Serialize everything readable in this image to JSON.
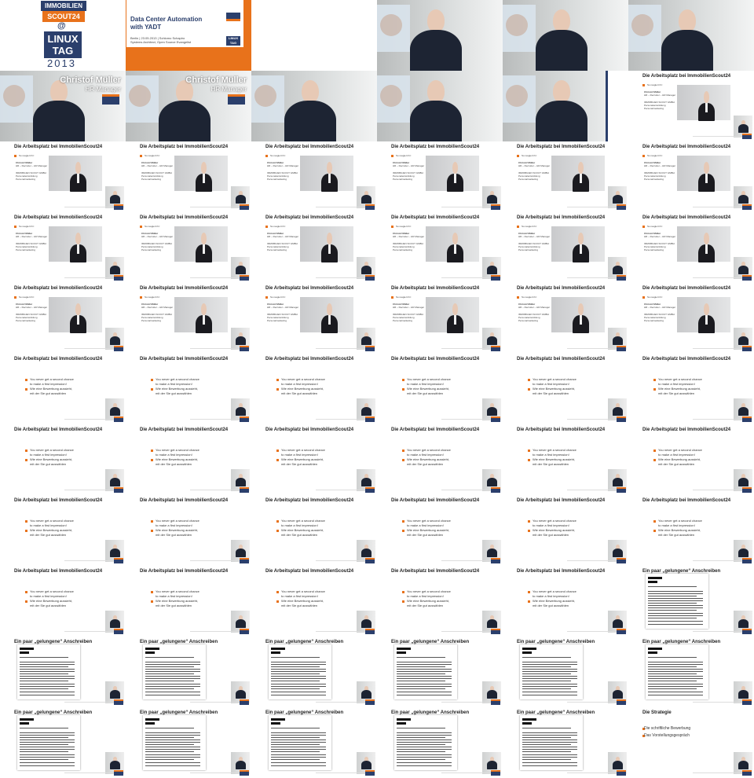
{
  "logo": {
    "brand_top": "IMMOBILIEN",
    "brand_bottom": "SCOUT24",
    "at": "@",
    "event_line1": "LINUX",
    "event_line2": "TAG",
    "year": "2013"
  },
  "title_slide": {
    "title_line1": "Data Center Automation",
    "title_line2": "with YADT",
    "meta_line1": "Berlin | 23.05.2013 | Schlomo Schapiro",
    "meta_line2": "Systems Architect, Open Source Evangelist",
    "logo_text1": "LINUX",
    "logo_text2": "TAG"
  },
  "speaker": {
    "name": "Christof Müller",
    "role": "HR Manager"
  },
  "slides": {
    "arbeitsplatz_title": "Die Arbeitsplatz bei ImmobilienScout24",
    "profile_intro": "So reagiert ihr:",
    "profile_name": "Christof Müller",
    "profile_role": "HR – Recruiter – HR Manager",
    "profile_company": "IMMOBILIEN SCOUT GMBH",
    "profile_line2": "Personalentwicklung",
    "profile_line3": "Personalmarketing",
    "bullet1_line1": "You never get a second chance",
    "bullet1_line2": "to make a first impression!",
    "bullet2_line1": "Wie eine Bewerbung aussieht,",
    "bullet2_line2": "mit der Sie gut auswählen",
    "anschreiben_title": "Ein paar „gelungene“ Anschreiben",
    "strategie_title": "Die Strategie",
    "strategie_item1": "Die schriftliche Bewerbung",
    "strategie_item2": "Das Vorstellungsgespräch"
  },
  "colors": {
    "brand_blue": "#2b3f6c",
    "brand_orange": "#e8721b"
  },
  "grid": {
    "columns": 6,
    "rows": 11,
    "cells": [
      "logo",
      "title",
      "blank",
      "stage",
      "stage",
      "stage",
      "lowerthird",
      "lowerthird",
      "stage",
      "stage",
      "stage-logo",
      "profile",
      "profile",
      "profile",
      "profile",
      "profile",
      "profile",
      "profile",
      "profile",
      "profile",
      "profile",
      "profile",
      "profile",
      "profile",
      "profile",
      "profile",
      "profile",
      "profile",
      "profile",
      "profile",
      "bullets",
      "bullets",
      "bullets",
      "bullets",
      "bullets",
      "bullets",
      "bullets",
      "bullets",
      "bullets",
      "bullets",
      "bullets",
      "bullets",
      "bullets",
      "bullets",
      "bullets",
      "bullets",
      "bullets",
      "bullets",
      "bullets",
      "bullets",
      "bullets",
      "bullets",
      "bullets",
      "letter",
      "letter",
      "letter",
      "letter",
      "letter",
      "letter",
      "letter",
      "letter",
      "letter",
      "letter",
      "letter",
      "letter",
      "strategy"
    ]
  }
}
